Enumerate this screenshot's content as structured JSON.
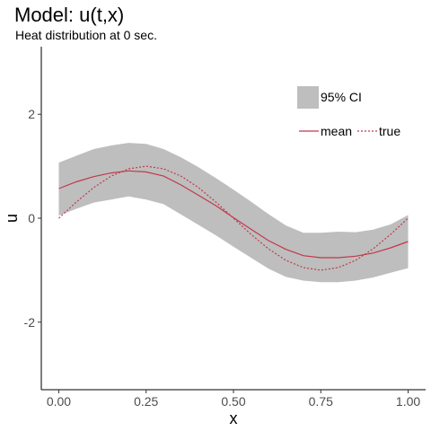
{
  "chart_data": {
    "type": "line",
    "title": "Model: u(t,x)",
    "subtitle": "Heat distribution at 0 sec.",
    "xlabel": "x",
    "ylabel": "u",
    "xlim": [
      -0.05,
      1.05
    ],
    "ylim": [
      -3.3,
      3.3
    ],
    "x_ticks": [
      0,
      0.25,
      0.5,
      0.75,
      1
    ],
    "x_tick_labels": [
      "0.00",
      "0.25",
      "0.50",
      "0.75",
      "1.00"
    ],
    "y_ticks": [
      2,
      0,
      -2
    ],
    "y_tick_labels": [
      "2",
      "0",
      "-2"
    ],
    "grid": false,
    "legend_position": "top-right",
    "legend": {
      "ci_label": "95% CI",
      "mean_label": "mean",
      "true_label": "true"
    },
    "colors": {
      "ci_band": "#bebebe",
      "mean": "#c0394b",
      "true": "#c0394b"
    },
    "x": [
      0,
      0.05,
      0.1,
      0.15,
      0.2,
      0.25,
      0.3,
      0.35,
      0.4,
      0.45,
      0.5,
      0.55,
      0.6,
      0.65,
      0.7,
      0.75,
      0.8,
      0.85,
      0.9,
      0.95,
      1.0
    ],
    "ci_upper": [
      1.07,
      1.2,
      1.33,
      1.4,
      1.45,
      1.43,
      1.33,
      1.17,
      0.98,
      0.77,
      0.55,
      0.32,
      0.08,
      -0.14,
      -0.28,
      -0.28,
      -0.26,
      -0.27,
      -0.22,
      -0.12,
      0.06
    ],
    "ci_lower": [
      0.05,
      0.18,
      0.3,
      0.36,
      0.42,
      0.36,
      0.27,
      0.07,
      -0.13,
      -0.33,
      -0.55,
      -0.76,
      -0.97,
      -1.13,
      -1.2,
      -1.23,
      -1.23,
      -1.2,
      -1.14,
      -1.05,
      -0.96
    ],
    "series": [
      {
        "name": "mean",
        "values": [
          0.57,
          0.7,
          0.8,
          0.87,
          0.91,
          0.89,
          0.81,
          0.64,
          0.44,
          0.24,
          0.01,
          -0.21,
          -0.43,
          -0.6,
          -0.72,
          -0.76,
          -0.76,
          -0.73,
          -0.67,
          -0.57,
          -0.45
        ]
      },
      {
        "name": "true",
        "values": [
          0.0,
          0.31,
          0.59,
          0.81,
          0.95,
          1.0,
          0.95,
          0.81,
          0.59,
          0.31,
          0.0,
          -0.31,
          -0.59,
          -0.81,
          -0.95,
          -1.0,
          -0.95,
          -0.81,
          -0.59,
          -0.31,
          0.0
        ]
      }
    ]
  }
}
